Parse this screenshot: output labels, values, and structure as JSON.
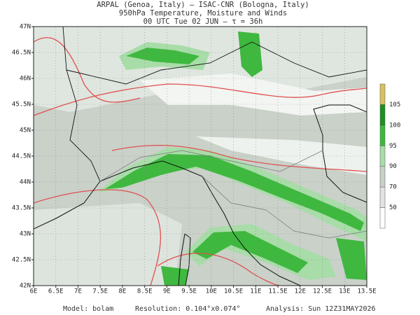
{
  "header": {
    "lines": [
      "ARPAL (Genoa, Italy)  —  ISAC-CNR (Bologna, Italy)",
      "950hPa Temperature, Moisture and Winds",
      "00 UTC Tue 02 JUN  —  τ = 36h"
    ]
  },
  "axes": {
    "lat_ticks": [
      {
        "value": 47,
        "label": "47N"
      },
      {
        "value": 46.5,
        "label": "46.5N"
      },
      {
        "value": 46,
        "label": "46N"
      },
      {
        "value": 45.5,
        "label": "45.5N"
      },
      {
        "value": 45,
        "label": "45N"
      },
      {
        "value": 44.5,
        "label": "44.5N"
      },
      {
        "value": 44,
        "label": "44N"
      },
      {
        "value": 43.5,
        "label": "43.5N"
      },
      {
        "value": 43,
        "label": "43N"
      },
      {
        "value": 42.5,
        "label": "42.5N"
      },
      {
        "value": 42,
        "label": "42N"
      }
    ],
    "lon_ticks": [
      {
        "value": 6,
        "label": "6E"
      },
      {
        "value": 6.5,
        "label": "6.5E"
      },
      {
        "value": 7,
        "label": "7E"
      },
      {
        "value": 7.5,
        "label": "7.5E"
      },
      {
        "value": 8,
        "label": "8E"
      },
      {
        "value": 8.5,
        "label": "8.5E"
      },
      {
        "value": 9,
        "label": "9E"
      },
      {
        "value": 9.5,
        "label": "9.5E"
      },
      {
        "value": 10,
        "label": "10E"
      },
      {
        "value": 10.5,
        "label": "10.5E"
      },
      {
        "value": 11,
        "label": "11E"
      },
      {
        "value": 11.5,
        "label": "11.5E"
      },
      {
        "value": 12,
        "label": "12E"
      },
      {
        "value": 12.5,
        "label": "12.5E"
      },
      {
        "value": 13,
        "label": "13E"
      },
      {
        "value": 13.5,
        "label": "13.5E"
      }
    ]
  },
  "colorbar": {
    "levels": [
      50,
      70,
      90,
      95,
      100,
      105
    ],
    "colors": [
      "#ffffff",
      "#e3e3e3",
      "#c6d2c6",
      "#a8dca8",
      "#3fb83f",
      "#1f8f1f",
      "#d8c060"
    ]
  },
  "footer": {
    "model": "Model: bolam",
    "resolution": "Resolution: 0.104°x0.074°",
    "analysis": "Analysis: Sun 12Z31MAY2026"
  }
}
